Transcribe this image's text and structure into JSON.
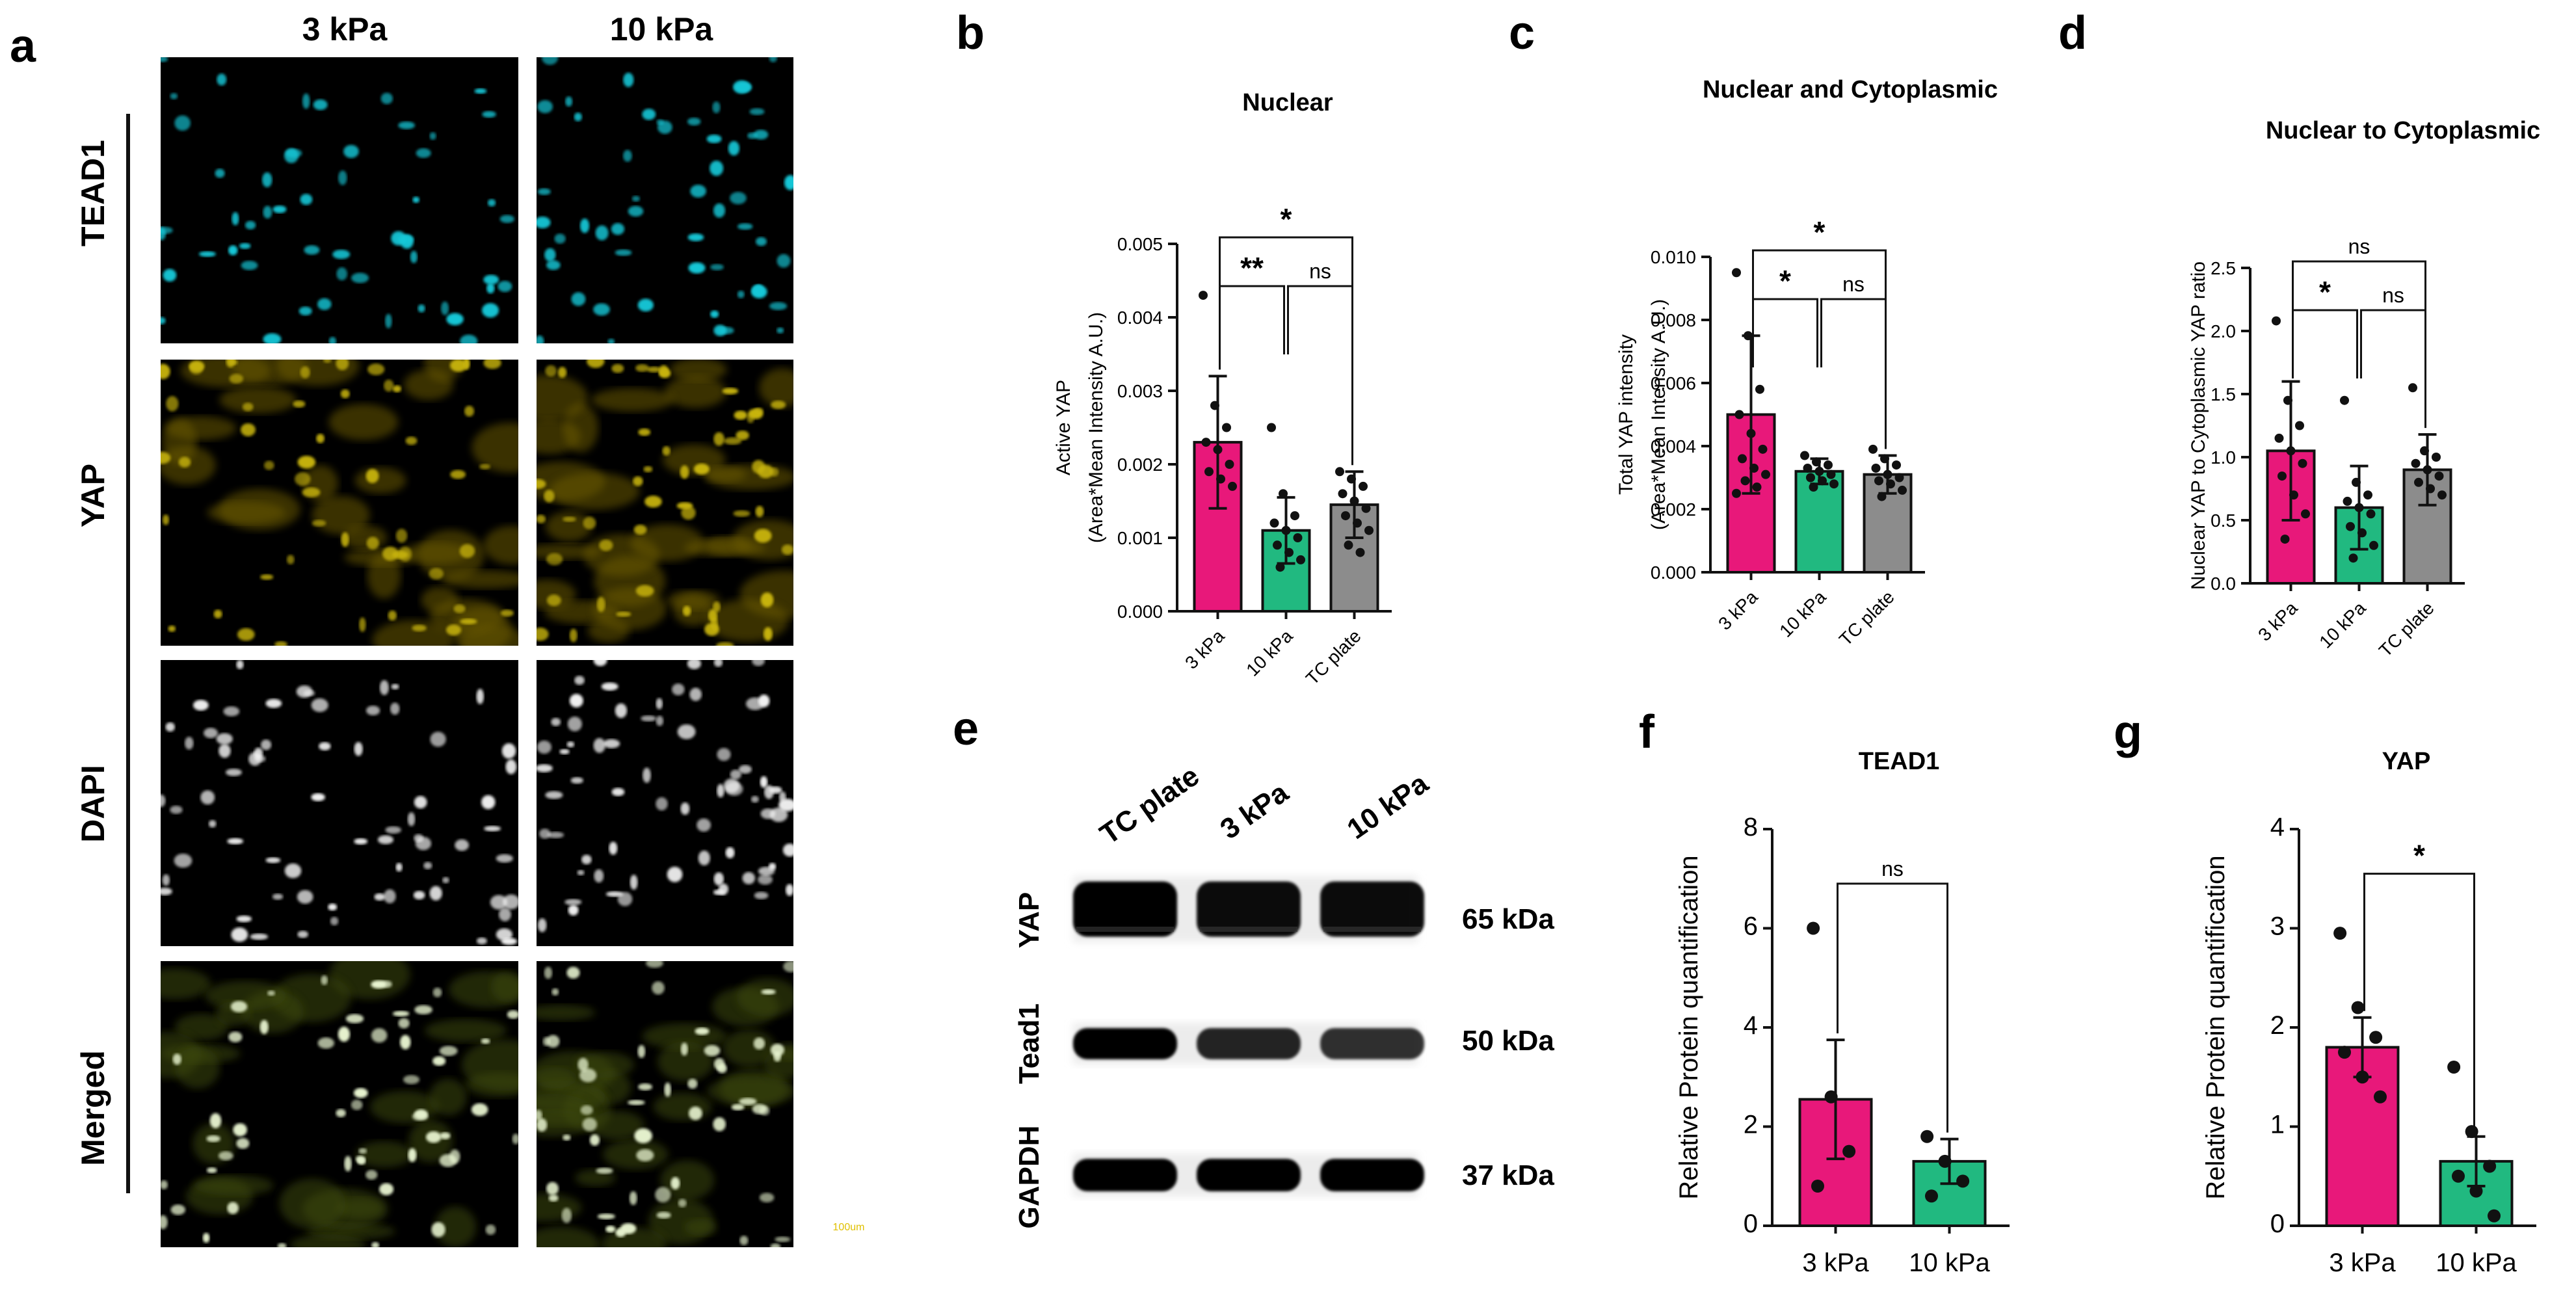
{
  "colors": {
    "pink": "#e8187a",
    "green": "#21b980",
    "gray": "#8c8c8c",
    "cyan": "#18c8d8",
    "yellow": "#c8b40a",
    "white": "#f2f2f2"
  },
  "panel_a": {
    "letter": "a",
    "columns": [
      "3 kPa",
      "10 kPa"
    ],
    "rows": [
      "TEAD1",
      "YAP",
      "DAPI",
      "Merged"
    ],
    "scale_bar": "100um"
  },
  "panel_e": {
    "letter": "e",
    "lanes": [
      "TC plate",
      "3 kPa",
      "10 kPa"
    ],
    "proteins": [
      "YAP",
      "Tead1",
      "GAPDH"
    ],
    "sizes": [
      "65 kDa",
      "50 kDa",
      "37 kDa"
    ]
  },
  "chart_data": [
    {
      "letter": "b",
      "type": "bar",
      "title": "Nuclear",
      "ylabel": [
        "Active YAP",
        "(Area*Mean Intensity A.U.)"
      ],
      "categories": [
        "3 kPa",
        "10 kPa",
        "TC plate"
      ],
      "values": [
        0.0023,
        0.0011,
        0.00145
      ],
      "sd": [
        0.0009,
        0.00045,
        0.00045
      ],
      "ylim": [
        0,
        0.005
      ],
      "yticks": [
        "0.000",
        "0.001",
        "0.002",
        "0.003",
        "0.004",
        "0.005"
      ],
      "points": [
        [
          0.0043,
          0.0028,
          0.0025,
          0.0023,
          0.0022,
          0.002,
          0.0019,
          0.0018,
          0.0017
        ],
        [
          0.0025,
          0.0016,
          0.0013,
          0.0012,
          0.0011,
          0.001,
          0.0009,
          0.0008,
          0.0007,
          0.0006
        ],
        [
          0.0019,
          0.0018,
          0.0017,
          0.0016,
          0.0015,
          0.0014,
          0.0013,
          0.0012,
          0.0011,
          0.0009,
          0.0008
        ]
      ],
      "comparisons": [
        {
          "a": 0,
          "b": 1,
          "label": "**"
        },
        {
          "a": 1,
          "b": 2,
          "label": "ns"
        },
        {
          "a": 0,
          "b": 2,
          "label": "*"
        }
      ]
    },
    {
      "letter": "c",
      "type": "bar",
      "title": "Nuclear and Cytoplasmic",
      "ylabel": [
        "Total YAP intensity",
        "(Area*Mean Intensity A.U.)"
      ],
      "categories": [
        "3 kPa",
        "10 kPa",
        "TC plate"
      ],
      "values": [
        0.005,
        0.0032,
        0.0031
      ],
      "sd": [
        0.0025,
        0.0004,
        0.0006
      ],
      "ylim": [
        0,
        0.01
      ],
      "yticks": [
        "0.000",
        "0.002",
        "0.004",
        "0.006",
        "0.008",
        "0.010"
      ],
      "points": [
        [
          0.0095,
          0.0075,
          0.0058,
          0.005,
          0.0044,
          0.0039,
          0.0036,
          0.0033,
          0.0031,
          0.0029,
          0.0027,
          0.0025
        ],
        [
          0.0037,
          0.0035,
          0.0034,
          0.0033,
          0.0032,
          0.0031,
          0.003,
          0.0029,
          0.0028,
          0.0027
        ],
        [
          0.0039,
          0.0036,
          0.0034,
          0.0033,
          0.0031,
          0.003,
          0.0029,
          0.0028,
          0.0026,
          0.0024
        ]
      ],
      "comparisons": [
        {
          "a": 0,
          "b": 1,
          "label": "*"
        },
        {
          "a": 1,
          "b": 2,
          "label": "ns"
        },
        {
          "a": 0,
          "b": 2,
          "label": "*"
        }
      ]
    },
    {
      "letter": "d",
      "type": "bar",
      "title": "Nuclear to Cytoplasmic",
      "ylabel": [
        "Nuclear YAP to Cytoplasmic YAP ratio"
      ],
      "categories": [
        "3 kPa",
        "10 kPa",
        "TC plate"
      ],
      "values": [
        1.05,
        0.6,
        0.9
      ],
      "sd": [
        0.55,
        0.33,
        0.28
      ],
      "ylim": [
        0,
        2.5
      ],
      "yticks": [
        "0.0",
        "0.5",
        "1.0",
        "1.5",
        "2.0",
        "2.5"
      ],
      "points": [
        [
          2.08,
          1.45,
          1.25,
          1.15,
          1.05,
          0.95,
          0.85,
          0.7,
          0.55,
          0.35
        ],
        [
          1.45,
          0.8,
          0.7,
          0.65,
          0.6,
          0.55,
          0.45,
          0.4,
          0.3,
          0.2
        ],
        [
          1.55,
          1.05,
          1.0,
          0.95,
          0.9,
          0.85,
          0.8,
          0.75,
          0.7
        ]
      ],
      "comparisons": [
        {
          "a": 0,
          "b": 1,
          "label": "*"
        },
        {
          "a": 1,
          "b": 2,
          "label": "ns"
        },
        {
          "a": 0,
          "b": 2,
          "label": "ns"
        }
      ]
    },
    {
      "letter": "f",
      "type": "bar",
      "title": "TEAD1",
      "ylabel": [
        "Relative Protein quantification"
      ],
      "categories": [
        "3 kPa",
        "10 kPa"
      ],
      "values": [
        2.55,
        1.3
      ],
      "sem": [
        1.2,
        0.45
      ],
      "ylim": [
        0,
        8
      ],
      "yticks": [
        "0",
        "2",
        "4",
        "6",
        "8"
      ],
      "points": [
        [
          6.0,
          2.6,
          1.5,
          0.8
        ],
        [
          1.8,
          1.3,
          0.9,
          0.6
        ]
      ],
      "comparisons": [
        {
          "a": 0,
          "b": 1,
          "label": "ns"
        }
      ]
    },
    {
      "letter": "g",
      "type": "bar",
      "title": "YAP",
      "ylabel": [
        "Relative Protein quantification"
      ],
      "categories": [
        "3 kPa",
        "10 kPa"
      ],
      "values": [
        1.8,
        0.65
      ],
      "sem": [
        0.3,
        0.25
      ],
      "ylim": [
        0,
        4
      ],
      "yticks": [
        "0",
        "1",
        "2",
        "3",
        "4"
      ],
      "points": [
        [
          2.95,
          2.2,
          1.9,
          1.75,
          1.5,
          1.3
        ],
        [
          1.6,
          0.95,
          0.6,
          0.5,
          0.35,
          0.1
        ]
      ],
      "comparisons": [
        {
          "a": 0,
          "b": 1,
          "label": "*"
        }
      ]
    }
  ]
}
